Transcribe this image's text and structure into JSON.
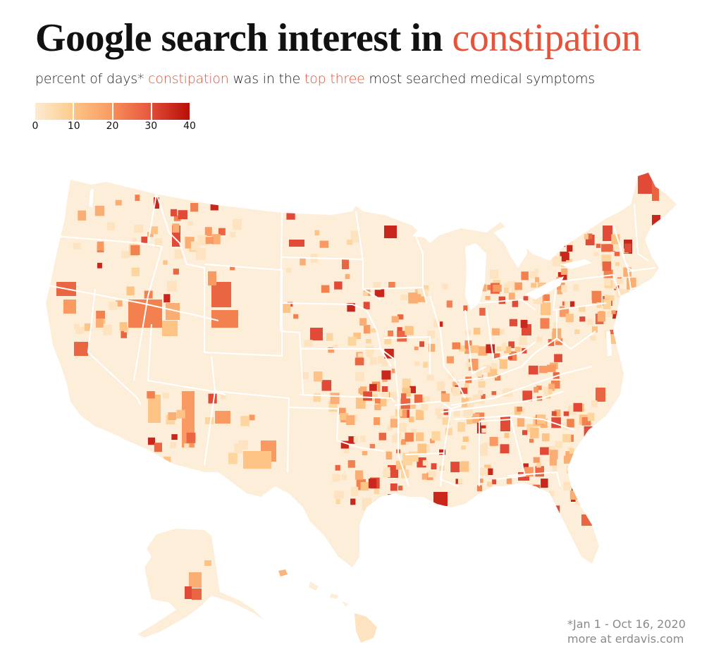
{
  "header": {
    "title_prefix": "Google search interest in ",
    "title_term": "constipation",
    "subtitle_parts": {
      "p1": "percent of days* ",
      "p2": "constipation",
      "p3": " was in the ",
      "p4": "top three",
      "p5": " most searched medical symptoms"
    }
  },
  "legend": {
    "ticks": [
      "0",
      "10",
      "20",
      "30",
      "40"
    ],
    "segments": [
      {
        "from": "#fdebd3",
        "to": "#fdcb8b"
      },
      {
        "from": "#fdc486",
        "to": "#f89a62"
      },
      {
        "from": "#f68c58",
        "to": "#e7573e"
      },
      {
        "from": "#e04a36",
        "to": "#b80f07"
      }
    ]
  },
  "footnote": {
    "date_range": "*Jan 1 - Oct 16, 2020",
    "credit": "more at erdavis.com"
  },
  "colors": {
    "accent": "#e4533a",
    "base": "#fdeed9",
    "border": "#ffffff"
  },
  "chart_data": {
    "type": "choropleth",
    "title": "Google search interest in constipation",
    "subtitle": "percent of days* constipation was in the top three most searched medical symptoms",
    "geography": "US counties (contiguous US, Alaska, Hawaii)",
    "value_label": "percent of days",
    "color_scale": {
      "min": 0,
      "max": 40,
      "ticks": [
        0,
        10,
        20,
        30,
        40
      ],
      "palette": "light cream to dark red"
    },
    "notes": "*Jan 1 - Oct 16, 2020",
    "highlights": [
      {
        "region": "Northern Maine",
        "level": "25-30"
      },
      {
        "region": "Wyoming (western/central counties)",
        "level": "20-25"
      },
      {
        "region": "Nevada (Elko area)",
        "level": "20-25"
      },
      {
        "region": "North Idaho panhandle",
        "level": "30-40"
      },
      {
        "region": "Southern Louisiana coast",
        "level": "30-40"
      },
      {
        "region": "Central Florida county",
        "level": "35-40"
      },
      {
        "region": "New York / Vermont counties",
        "level": "25-30"
      },
      {
        "region": "Most of the West, Plains, Texas",
        "level": "0-5"
      }
    ]
  }
}
